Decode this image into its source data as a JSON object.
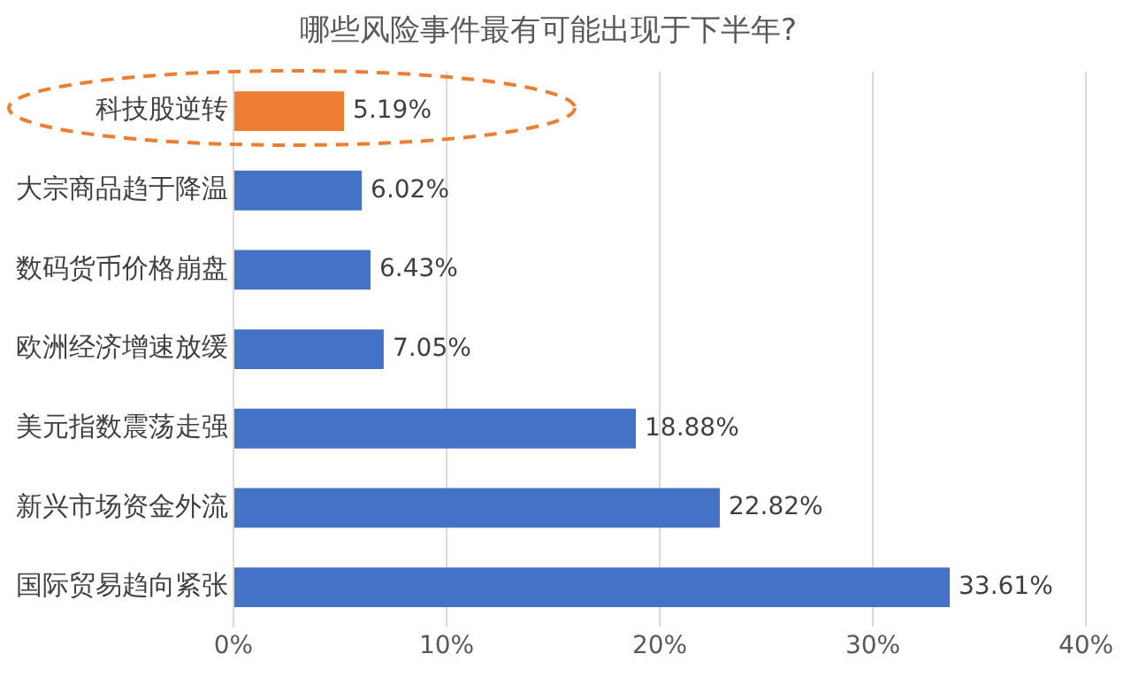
{
  "chart_data": {
    "type": "bar",
    "orientation": "horizontal",
    "title": "哪些风险事件最有可能出现于下半年?",
    "categories": [
      "科技股逆转",
      "大宗商品趋于降温",
      "数码货币价格崩盘",
      "欧洲经济增速放缓",
      "美元指数震荡走强",
      "新兴市场资金外流",
      "国际贸易趋向紧张"
    ],
    "values": [
      5.19,
      6.02,
      6.43,
      7.05,
      18.88,
      22.82,
      33.61
    ],
    "colors": [
      "#ed7d31",
      "#4472c4",
      "#4472c4",
      "#4472c4",
      "#4472c4",
      "#4472c4",
      "#4472c4"
    ],
    "value_labels": [
      "5.19%",
      "6.02%",
      "6.43%",
      "7.05%",
      "18.88%",
      "22.82%",
      "33.61%"
    ],
    "xlim": [
      0,
      40
    ],
    "xticks": [
      {
        "value": 0,
        "label": "0%"
      },
      {
        "value": 10,
        "label": "10%"
      },
      {
        "value": 20,
        "label": "20%"
      },
      {
        "value": 30,
        "label": "30%"
      },
      {
        "value": 40,
        "label": "40%"
      }
    ],
    "grid": "x"
  }
}
